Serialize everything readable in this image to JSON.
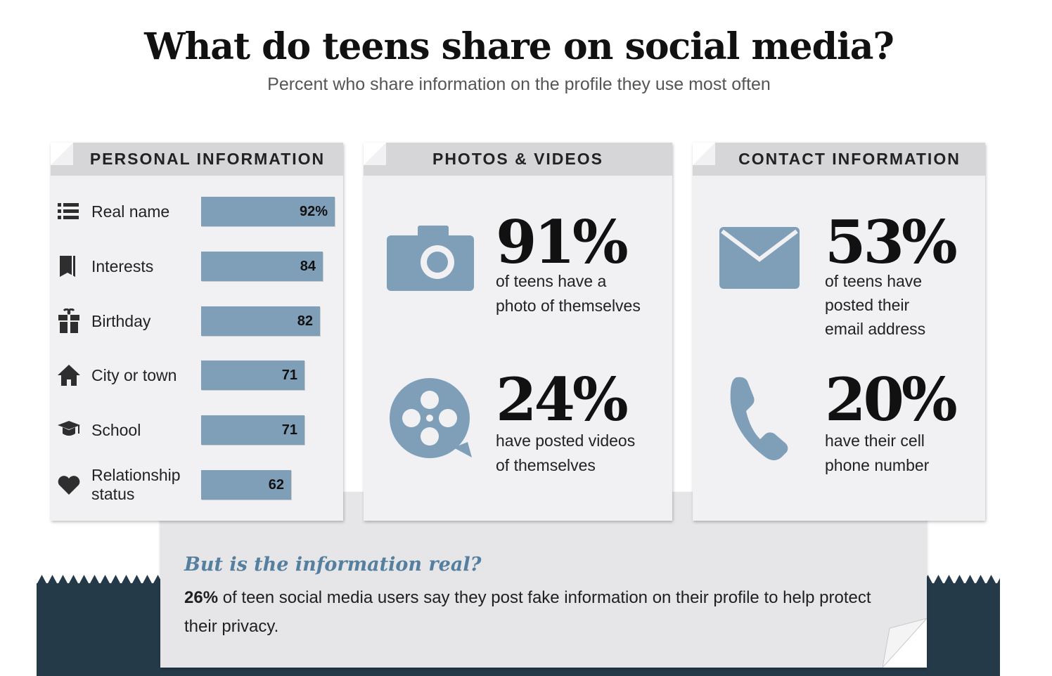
{
  "title": "What do teens share on social media?",
  "subtitle": "Percent who share information on the profile they use most often",
  "colors": {
    "bar": "#7f9fb9",
    "icon": "#7f9fb9",
    "dark_band": "#253a49",
    "note_title": "#557f9e"
  },
  "personal": {
    "heading": "PERSONAL INFORMATION",
    "rows": [
      {
        "icon": "list-icon",
        "label": "Real name",
        "value": 92,
        "display": "92%"
      },
      {
        "icon": "book-icon",
        "label": "Interests",
        "value": 84,
        "display": "84"
      },
      {
        "icon": "gift-icon",
        "label": "Birthday",
        "value": 82,
        "display": "82"
      },
      {
        "icon": "house-icon",
        "label": "City or town",
        "value": 71,
        "display": "71"
      },
      {
        "icon": "graduation-cap-icon",
        "label": "School",
        "value": 71,
        "display": "71"
      },
      {
        "icon": "heart-icon",
        "label": "Relationship status",
        "value": 62,
        "display": "62"
      }
    ]
  },
  "photos": {
    "heading": "PHOTOS & VIDEOS",
    "stat1": {
      "icon": "camera-icon",
      "big": "91%",
      "line1": "of teens have a",
      "line2": "photo of themselves"
    },
    "stat2": {
      "icon": "film-reel-icon",
      "big": "24%",
      "line1": "have posted videos",
      "line2": "of themselves"
    }
  },
  "contact": {
    "heading": "CONTACT INFORMATION",
    "stat1": {
      "icon": "envelope-icon",
      "big": "53%",
      "line1": "of teens have",
      "line2": "posted their",
      "line3": "email address"
    },
    "stat2": {
      "icon": "phone-icon",
      "big": "20%",
      "line1": "have their cell",
      "line2": "phone number"
    }
  },
  "note": {
    "title": "But is the information real?",
    "highlight": "26%",
    "body": " of teen social media users say they post fake information on their profile to help protect their privacy."
  },
  "chart_data": {
    "type": "bar",
    "title": "What do teens share on social media?",
    "subtitle": "Percent who share information on the profile they use most often",
    "categories": [
      "Real name",
      "Interests",
      "Birthday",
      "City or town",
      "School",
      "Relationship status"
    ],
    "values": [
      92,
      84,
      82,
      71,
      71,
      62
    ],
    "xlabel": "",
    "ylabel": "",
    "orientation": "horizontal",
    "grid": false,
    "extra_stats": [
      {
        "label": "of teens have a photo of themselves",
        "value": 91
      },
      {
        "label": "have posted videos of themselves",
        "value": 24
      },
      {
        "label": "of teens have posted their email address",
        "value": 53
      },
      {
        "label": "have their cell phone number",
        "value": 20
      },
      {
        "label": "of teen social media users say they post fake information on their profile to help protect their privacy.",
        "value": 26
      }
    ]
  }
}
